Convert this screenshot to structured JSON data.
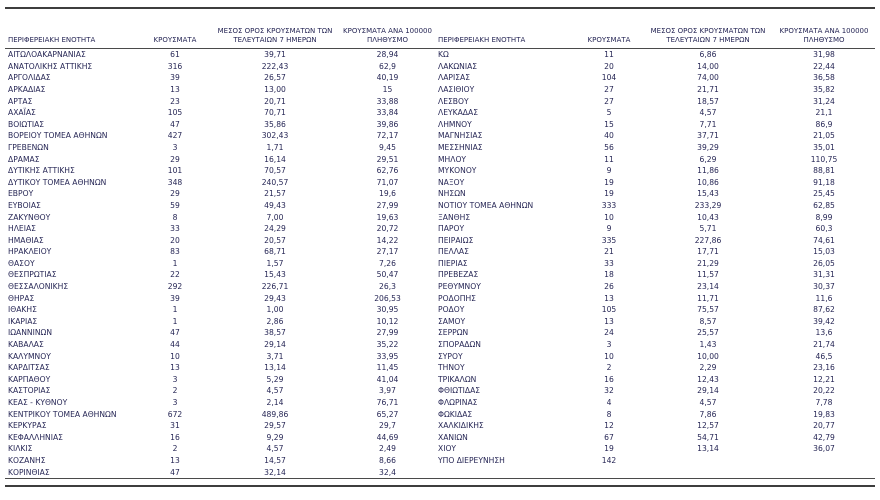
{
  "colors": {
    "text": "#262655",
    "rule": "#3d3d3d"
  },
  "table": {
    "headers": {
      "region": "ΠΕΡΙΦΕΡΕΙΑΚΗ ΕΝΟΤΗΤΑ",
      "cases": "ΚΡΟΥΣΜΑΤΑ",
      "avg7": "ΜΕΣΟΣ ΟΡΟΣ ΚΡΟΥΣΜΑΤΩΝ ΤΩΝ ΤΕΛΕΥΤΑΙΩΝ 7 ΗΜΕΡΩΝ",
      "per100k": "ΚΡΟΥΣΜΑΤΑ ΑΝΑ 100000 ΠΛΗΘΥΣΜΟ"
    },
    "rows_left": [
      {
        "name": "ΑΙΤΩΛΟΑΚΑΡΝΑΝΙΑΣ",
        "cases": "61",
        "avg7": "39,71",
        "per100k": "28,94"
      },
      {
        "name": "ΑΝΑΤΟΛΙΚΗΣ ΑΤΤΙΚΗΣ",
        "cases": "316",
        "avg7": "222,43",
        "per100k": "62,9"
      },
      {
        "name": "ΑΡΓΟΛΙΔΑΣ",
        "cases": "39",
        "avg7": "26,57",
        "per100k": "40,19"
      },
      {
        "name": "ΑΡΚΑΔΙΑΣ",
        "cases": "13",
        "avg7": "13,00",
        "per100k": "15"
      },
      {
        "name": "ΑΡΤΑΣ",
        "cases": "23",
        "avg7": "20,71",
        "per100k": "33,88"
      },
      {
        "name": "ΑΧΑΪΑΣ",
        "cases": "105",
        "avg7": "70,71",
        "per100k": "33,84"
      },
      {
        "name": "ΒΟΙΩΤΙΑΣ",
        "cases": "47",
        "avg7": "35,86",
        "per100k": "39,86"
      },
      {
        "name": "ΒΟΡΕΙΟΥ ΤΟΜΕΑ ΑΘΗΝΩΝ",
        "cases": "427",
        "avg7": "302,43",
        "per100k": "72,17"
      },
      {
        "name": "ΓΡΕΒΕΝΩΝ",
        "cases": "3",
        "avg7": "1,71",
        "per100k": "9,45"
      },
      {
        "name": "ΔΡΑΜΑΣ",
        "cases": "29",
        "avg7": "16,14",
        "per100k": "29,51"
      },
      {
        "name": "ΔΥΤΙΚΗΣ ΑΤΤΙΚΗΣ",
        "cases": "101",
        "avg7": "70,57",
        "per100k": "62,76"
      },
      {
        "name": "ΔΥΤΙΚΟΥ ΤΟΜΕΑ ΑΘΗΝΩΝ",
        "cases": "348",
        "avg7": "240,57",
        "per100k": "71,07"
      },
      {
        "name": "ΕΒΡΟΥ",
        "cases": "29",
        "avg7": "21,57",
        "per100k": "19,6"
      },
      {
        "name": "ΕΥΒΟΙΑΣ",
        "cases": "59",
        "avg7": "49,43",
        "per100k": "27,99"
      },
      {
        "name": "ΖΑΚΥΝΘΟΥ",
        "cases": "8",
        "avg7": "7,00",
        "per100k": "19,63"
      },
      {
        "name": "ΗΛΕΙΑΣ",
        "cases": "33",
        "avg7": "24,29",
        "per100k": "20,72"
      },
      {
        "name": "ΗΜΑΘΙΑΣ",
        "cases": "20",
        "avg7": "20,57",
        "per100k": "14,22"
      },
      {
        "name": "ΗΡΑΚΛΕΙΟΥ",
        "cases": "83",
        "avg7": "68,71",
        "per100k": "27,17"
      },
      {
        "name": "ΘΑΣΟΥ",
        "cases": "1",
        "avg7": "1,57",
        "per100k": "7,26"
      },
      {
        "name": "ΘΕΣΠΡΩΤΙΑΣ",
        "cases": "22",
        "avg7": "15,43",
        "per100k": "50,47"
      },
      {
        "name": "ΘΕΣΣΑΛΟΝΙΚΗΣ",
        "cases": "292",
        "avg7": "226,71",
        "per100k": "26,3"
      },
      {
        "name": "ΘΗΡΑΣ",
        "cases": "39",
        "avg7": "29,43",
        "per100k": "206,53"
      },
      {
        "name": "ΙΘΑΚΗΣ",
        "cases": "1",
        "avg7": "1,00",
        "per100k": "30,95"
      },
      {
        "name": "ΙΚΑΡΙΑΣ",
        "cases": "1",
        "avg7": "2,86",
        "per100k": "10,12"
      },
      {
        "name": "ΙΩΑΝΝΙΝΩΝ",
        "cases": "47",
        "avg7": "38,57",
        "per100k": "27,99"
      },
      {
        "name": "ΚΑΒΑΛΑΣ",
        "cases": "44",
        "avg7": "29,14",
        "per100k": "35,22"
      },
      {
        "name": "ΚΑΛΥΜΝΟΥ",
        "cases": "10",
        "avg7": "3,71",
        "per100k": "33,95"
      },
      {
        "name": "ΚΑΡΔΙΤΣΑΣ",
        "cases": "13",
        "avg7": "13,14",
        "per100k": "11,45"
      },
      {
        "name": "ΚΑΡΠΑΘΟΥ",
        "cases": "3",
        "avg7": "5,29",
        "per100k": "41,04"
      },
      {
        "name": "ΚΑΣΤΟΡΙΑΣ",
        "cases": "2",
        "avg7": "4,57",
        "per100k": "3,97"
      },
      {
        "name": "ΚΕΑΣ - ΚΥΘΝΟΥ",
        "cases": "3",
        "avg7": "2,14",
        "per100k": "76,71"
      },
      {
        "name": "ΚΕΝΤΡΙΚΟΥ ΤΟΜΕΑ ΑΘΗΝΩΝ",
        "cases": "672",
        "avg7": "489,86",
        "per100k": "65,27"
      },
      {
        "name": "ΚΕΡΚΥΡΑΣ",
        "cases": "31",
        "avg7": "29,57",
        "per100k": "29,7"
      },
      {
        "name": "ΚΕΦΑΛΛΗΝΙΑΣ",
        "cases": "16",
        "avg7": "9,29",
        "per100k": "44,69"
      },
      {
        "name": "ΚΙΛΚΙΣ",
        "cases": "2",
        "avg7": "4,57",
        "per100k": "2,49"
      },
      {
        "name": "ΚΟΖΑΝΗΣ",
        "cases": "13",
        "avg7": "14,57",
        "per100k": "8,66"
      },
      {
        "name": "ΚΟΡΙΝΘΙΑΣ",
        "cases": "47",
        "avg7": "32,14",
        "per100k": "32,4"
      }
    ],
    "rows_right": [
      {
        "name": "ΚΩ",
        "cases": "11",
        "avg7": "6,86",
        "per100k": "31,98"
      },
      {
        "name": "ΛΑΚΩΝΙΑΣ",
        "cases": "20",
        "avg7": "14,00",
        "per100k": "22,44"
      },
      {
        "name": "ΛΑΡΙΣΑΣ",
        "cases": "104",
        "avg7": "74,00",
        "per100k": "36,58"
      },
      {
        "name": "ΛΑΣΙΘΙΟΥ",
        "cases": "27",
        "avg7": "21,71",
        "per100k": "35,82"
      },
      {
        "name": "ΛΕΣΒΟΥ",
        "cases": "27",
        "avg7": "18,57",
        "per100k": "31,24"
      },
      {
        "name": "ΛΕΥΚΑΔΑΣ",
        "cases": "5",
        "avg7": "4,57",
        "per100k": "21,1"
      },
      {
        "name": "ΛΗΜΝΟΥ",
        "cases": "15",
        "avg7": "7,71",
        "per100k": "86,9"
      },
      {
        "name": "ΜΑΓΝΗΣΙΑΣ",
        "cases": "40",
        "avg7": "37,71",
        "per100k": "21,05"
      },
      {
        "name": "ΜΕΣΣΗΝΙΑΣ",
        "cases": "56",
        "avg7": "39,29",
        "per100k": "35,01"
      },
      {
        "name": "ΜΗΛΟΥ",
        "cases": "11",
        "avg7": "6,29",
        "per100k": "110,75"
      },
      {
        "name": "ΜΥΚΟΝΟΥ",
        "cases": "9",
        "avg7": "11,86",
        "per100k": "88,81"
      },
      {
        "name": "ΝΑΞΟΥ",
        "cases": "19",
        "avg7": "10,86",
        "per100k": "91,18"
      },
      {
        "name": "ΝΗΣΩΝ",
        "cases": "19",
        "avg7": "15,43",
        "per100k": "25,45"
      },
      {
        "name": "ΝΟΤΙΟΥ ΤΟΜΕΑ ΑΘΗΝΩΝ",
        "cases": "333",
        "avg7": "233,29",
        "per100k": "62,85"
      },
      {
        "name": "ΞΑΝΘΗΣ",
        "cases": "10",
        "avg7": "10,43",
        "per100k": "8,99"
      },
      {
        "name": "ΠΑΡΟΥ",
        "cases": "9",
        "avg7": "5,71",
        "per100k": "60,3"
      },
      {
        "name": "ΠΕΙΡΑΙΩΣ",
        "cases": "335",
        "avg7": "227,86",
        "per100k": "74,61"
      },
      {
        "name": "ΠΕΛΛΑΣ",
        "cases": "21",
        "avg7": "17,71",
        "per100k": "15,03"
      },
      {
        "name": "ΠΙΕΡΙΑΣ",
        "cases": "33",
        "avg7": "21,29",
        "per100k": "26,05"
      },
      {
        "name": "ΠΡΕΒΕΖΑΣ",
        "cases": "18",
        "avg7": "11,57",
        "per100k": "31,31"
      },
      {
        "name": "ΡΕΘΥΜΝΟΥ",
        "cases": "26",
        "avg7": "23,14",
        "per100k": "30,37"
      },
      {
        "name": "ΡΟΔΟΠΗΣ",
        "cases": "13",
        "avg7": "11,71",
        "per100k": "11,6"
      },
      {
        "name": "ΡΟΔΟΥ",
        "cases": "105",
        "avg7": "75,57",
        "per100k": "87,62"
      },
      {
        "name": "ΣΑΜΟΥ",
        "cases": "13",
        "avg7": "8,57",
        "per100k": "39,42"
      },
      {
        "name": "ΣΕΡΡΩΝ",
        "cases": "24",
        "avg7": "25,57",
        "per100k": "13,6"
      },
      {
        "name": "ΣΠΟΡΑΔΩΝ",
        "cases": "3",
        "avg7": "1,43",
        "per100k": "21,74"
      },
      {
        "name": "ΣΥΡΟΥ",
        "cases": "10",
        "avg7": "10,00",
        "per100k": "46,5"
      },
      {
        "name": "ΤΗΝΟΥ",
        "cases": "2",
        "avg7": "2,29",
        "per100k": "23,16"
      },
      {
        "name": "ΤΡΙΚΑΛΩΝ",
        "cases": "16",
        "avg7": "12,43",
        "per100k": "12,21"
      },
      {
        "name": "ΦΘΙΩΤΙΔΑΣ",
        "cases": "32",
        "avg7": "29,14",
        "per100k": "20,22"
      },
      {
        "name": "ΦΛΩΡΙΝΑΣ",
        "cases": "4",
        "avg7": "4,57",
        "per100k": "7,78"
      },
      {
        "name": "ΦΩΚΙΔΑΣ",
        "cases": "8",
        "avg7": "7,86",
        "per100k": "19,83"
      },
      {
        "name": "ΧΑΛΚΙΔΙΚΗΣ",
        "cases": "12",
        "avg7": "12,57",
        "per100k": "20,77"
      },
      {
        "name": "ΧΑΝΙΩΝ",
        "cases": "67",
        "avg7": "54,71",
        "per100k": "42,79"
      },
      {
        "name": "ΧΙΟΥ",
        "cases": "19",
        "avg7": "13,14",
        "per100k": "36,07"
      },
      {
        "name": "ΥΠΟ ΔΙΕΡΕΥΝΗΣΗ",
        "cases": "142",
        "avg7": "",
        "per100k": ""
      }
    ]
  }
}
